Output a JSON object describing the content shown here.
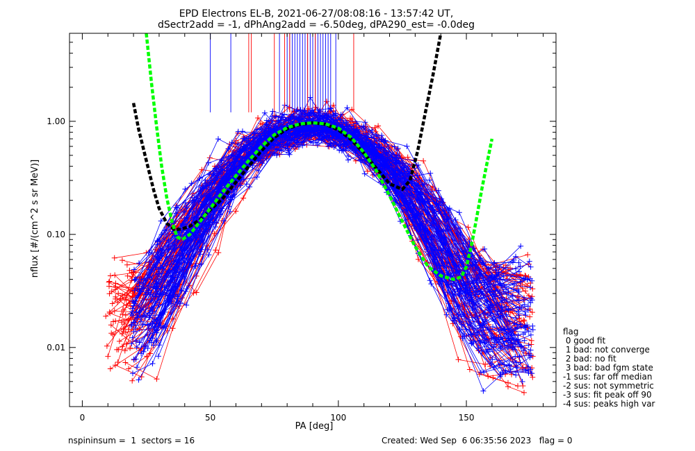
{
  "header": {
    "title_line1": "EPD Electrons EL-B, 2021-06-27/08:08:16 - 13:57:42 UT,",
    "title_line2": "dSectr2add = -1, dPhAng2add = -6.50deg, dPA290_est=  -0.0deg"
  },
  "footer": {
    "left": "nspininsum =  1  sectors = 16",
    "right": "Created: Wed Sep  6 06:35:56 2023   flag = 0"
  },
  "legend": {
    "title": "flag",
    "items": [
      " 0 good fit",
      " 1 bad: not converge",
      " 2 bad: no fit",
      " 3 bad: bad fgm state",
      "-1 sus: far off median",
      "-2 sus: not symmetric",
      "-3 sus: fit peak off 90",
      "-4 sus: peaks high var"
    ]
  },
  "chart_data": {
    "type": "line",
    "xlabel": "PA [deg]",
    "ylabel": "nflux [#/(cm^2 s sr MeV)]",
    "xlim": [
      -5,
      185
    ],
    "ylim": [
      0.003,
      6.0
    ],
    "yscale": "log",
    "x_ticks": [
      0,
      50,
      100,
      150
    ],
    "x_tick_labels": [
      "0",
      "50",
      "100",
      "150"
    ],
    "y_ticks": [
      0.01,
      0.1,
      1.0
    ],
    "y_tick_labels": [
      "0.01",
      "0.10",
      "1.00"
    ],
    "colors": {
      "series_a": "#ff0000",
      "series_b": "#0000ff",
      "fit_a": "#000000",
      "fit_b": "#00ff00"
    },
    "marker": "plus",
    "n_red_traces": 70,
    "n_blue_traces": 90,
    "peak_marker_lines": {
      "y_top": 6.0,
      "y_bottom": 1.2,
      "blue_pa": [
        50,
        58,
        77,
        80,
        81,
        82,
        83,
        84,
        85,
        86,
        87,
        88,
        89,
        90,
        91,
        92,
        93,
        94,
        95,
        96,
        97,
        99
      ],
      "red_pa": [
        65,
        66,
        75,
        79,
        81,
        88,
        91,
        106
      ]
    },
    "fits": [
      {
        "name": "black dashed fit",
        "color": "#000000",
        "x": [
          20,
          22,
          25,
          28,
          30,
          33,
          36,
          39,
          42,
          46,
          50,
          55,
          60,
          65,
          70,
          75,
          80,
          85,
          90,
          95,
          100,
          105,
          110,
          115,
          120,
          125,
          128,
          131,
          134,
          137,
          140
        ],
        "y": [
          1.45,
          0.85,
          0.45,
          0.24,
          0.17,
          0.125,
          0.11,
          0.112,
          0.118,
          0.135,
          0.165,
          0.21,
          0.29,
          0.4,
          0.55,
          0.72,
          0.86,
          0.94,
          0.97,
          0.94,
          0.84,
          0.69,
          0.52,
          0.38,
          0.28,
          0.25,
          0.3,
          0.55,
          1.2,
          2.6,
          6.0
        ]
      },
      {
        "name": "green dashed fit",
        "color": "#00ff00",
        "x": [
          25,
          27,
          29,
          31,
          33,
          35,
          37,
          39,
          42,
          46,
          50,
          55,
          60,
          65,
          70,
          75,
          80,
          85,
          90,
          95,
          100,
          105,
          110,
          115,
          120,
          125,
          130,
          135,
          140,
          145,
          148,
          150,
          152,
          154,
          156,
          158,
          160
        ],
        "y": [
          6.0,
          2.2,
          0.9,
          0.4,
          0.21,
          0.13,
          0.095,
          0.09,
          0.1,
          0.13,
          0.17,
          0.24,
          0.33,
          0.45,
          0.6,
          0.76,
          0.88,
          0.95,
          0.97,
          0.95,
          0.87,
          0.72,
          0.53,
          0.36,
          0.22,
          0.13,
          0.078,
          0.052,
          0.043,
          0.04,
          0.042,
          0.052,
          0.08,
          0.14,
          0.25,
          0.42,
          0.7
        ]
      }
    ]
  }
}
